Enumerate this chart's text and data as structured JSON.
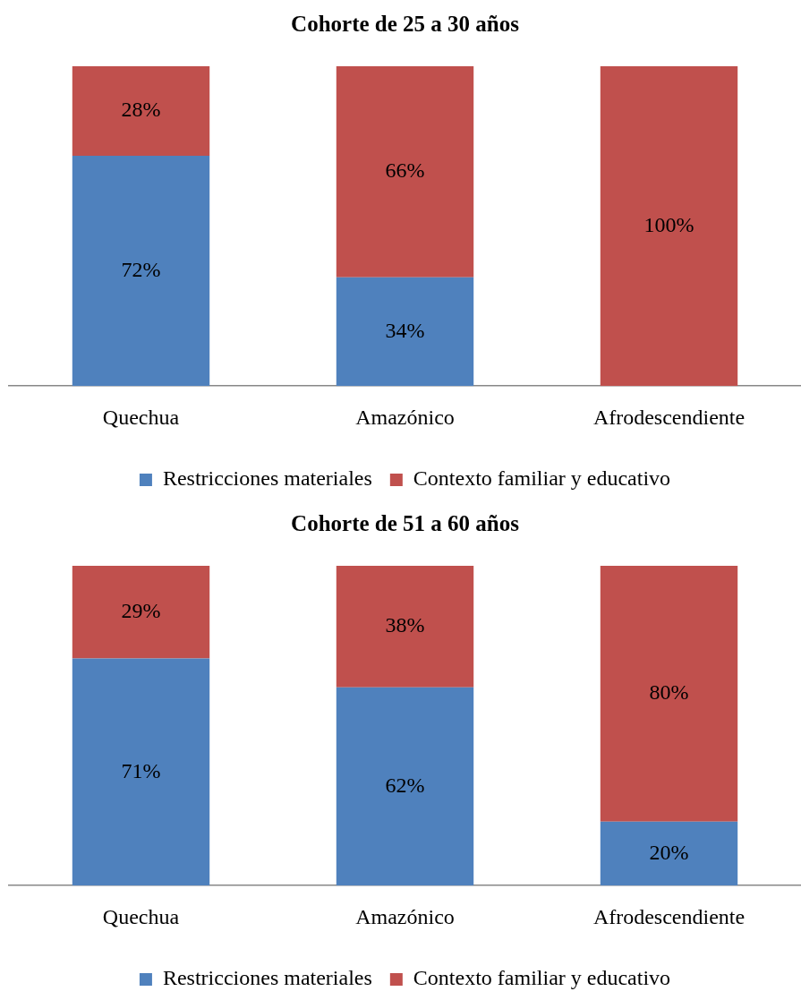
{
  "chart_data": [
    {
      "type": "bar",
      "title": "Cohorte de 25 a 30 años",
      "categories": [
        "Quechua",
        "Amazónico",
        "Afrodescendiente"
      ],
      "stacked": true,
      "ylim": [
        0,
        100
      ],
      "tick_labels": "x",
      "grid": false,
      "legend": "bottom",
      "series": [
        {
          "name": "Restricciones materiales",
          "color": "#4f81bd",
          "values": [
            72,
            34,
            0
          ],
          "value_labels": [
            "72%",
            "34%",
            null
          ]
        },
        {
          "name": "Contexto familiar y educativo",
          "color": "#c0504d",
          "values": [
            28,
            66,
            100
          ],
          "value_labels": [
            "28%",
            "66%",
            "100%"
          ]
        }
      ]
    },
    {
      "type": "bar",
      "title": "Cohorte de 51 a 60 años",
      "categories": [
        "Quechua",
        "Amazónico",
        "Afrodescendiente"
      ],
      "stacked": true,
      "ylim": [
        0,
        100
      ],
      "tick_labels": "x",
      "grid": false,
      "legend": "bottom",
      "series": [
        {
          "name": "Restricciones materiales",
          "color": "#4f81bd",
          "values": [
            71,
            62,
            20
          ],
          "value_labels": [
            "71%",
            "62%",
            "20%"
          ]
        },
        {
          "name": "Contexto familiar y educativo",
          "color": "#c0504d",
          "values": [
            29,
            38,
            80
          ],
          "value_labels": [
            "29%",
            "38%",
            "80%"
          ]
        }
      ]
    }
  ]
}
